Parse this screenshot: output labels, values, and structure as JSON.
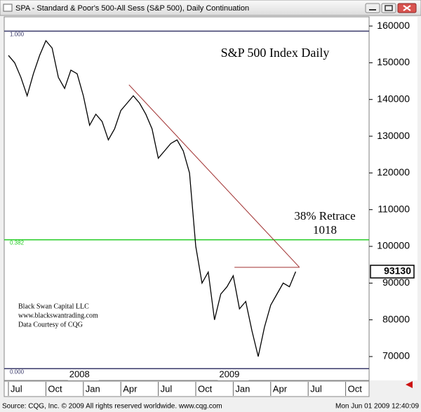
{
  "window_title": "SPA - Standard & Poor's 500-All Sess (S&P 500), Daily Continuation",
  "footer": {
    "left": "Source: CQG, Inc. © 2009 All rights reserved worldwide. www.cqg.com",
    "right": "Mon Jun 01 2009 12:40:09"
  },
  "chart_data": {
    "type": "line",
    "title": "S&P 500 Index Daily",
    "credits": [
      "Black Swan Capital LLC",
      "www.blackswantrading.com",
      "Data Courtesy of CQG"
    ],
    "annotations": [
      "38% Retrace",
      "1018"
    ],
    "year_labels": [
      {
        "label": "2008",
        "index": 12
      },
      {
        "label": "2009",
        "index": 36
      }
    ],
    "categories": [
      "Jul",
      null,
      null,
      null,
      null,
      null,
      "Oct",
      null,
      null,
      null,
      null,
      null,
      "Jan",
      null,
      null,
      null,
      null,
      null,
      "Apr",
      null,
      null,
      null,
      null,
      null,
      "Jul",
      null,
      null,
      null,
      null,
      null,
      "Oct",
      null,
      null,
      null,
      null,
      null,
      "Jan",
      null,
      null,
      null,
      null,
      null,
      "Apr",
      null,
      null,
      null,
      null,
      null,
      "Jul",
      null,
      null,
      null,
      null,
      null,
      "Oct",
      null
    ],
    "series": [
      {
        "name": "S&P 500",
        "color": "#000000",
        "values": [
          152000,
          150000,
          146000,
          141000,
          147000,
          152000,
          156000,
          154000,
          146000,
          143000,
          148000,
          147000,
          141000,
          133000,
          136000,
          134000,
          129000,
          132000,
          137000,
          139000,
          141000,
          139000,
          136000,
          132000,
          124000,
          126000,
          128000,
          129000,
          126000,
          120000,
          100000,
          90000,
          93000,
          80000,
          87000,
          89000,
          92000,
          83000,
          85000,
          77000,
          70000,
          78000,
          84000,
          87000,
          90000,
          89000,
          93130,
          null,
          null,
          null,
          null,
          null,
          null,
          null,
          null,
          null
        ]
      }
    ],
    "last_value": 93130,
    "fib_levels": [
      {
        "label": "1.000",
        "value": 158600,
        "color": "#3a3a6a"
      },
      {
        "label": "0.382",
        "value": 101800,
        "color": "#22cc22"
      },
      {
        "label": "0.000",
        "value": 66700,
        "color": "#3a3a6a"
      }
    ],
    "trendline": {
      "values": [
        144000,
        94300
      ],
      "color": "#a03030"
    },
    "resistance": {
      "value": 94300,
      "color": "#a03030"
    },
    "ylim": [
      63500,
      162500
    ],
    "yticks": [
      70000,
      80000,
      90000,
      100000,
      110000,
      120000,
      130000,
      140000,
      150000,
      160000
    ]
  }
}
